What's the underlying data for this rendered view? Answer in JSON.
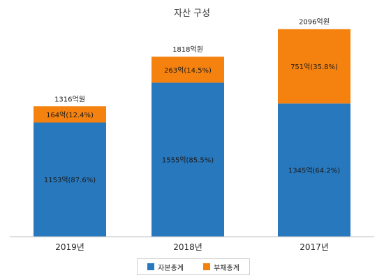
{
  "chart_data": {
    "type": "bar",
    "stacked": true,
    "title": "자산 구성",
    "categories": [
      "2019년",
      "2018년",
      "2017년"
    ],
    "totals": [
      1316,
      1818,
      2096
    ],
    "total_labels": [
      "1316억원",
      "1818억원",
      "2096억원"
    ],
    "series": [
      {
        "name": "자본총계",
        "color": "#2878bd",
        "values": [
          1153,
          1555,
          1345
        ],
        "labels": [
          "1153억(87.6%)",
          "1555억(85.5%)",
          "1345억(64.2%)"
        ]
      },
      {
        "name": "부채총계",
        "color": "#f5820f",
        "values": [
          164,
          263,
          751
        ],
        "labels": [
          "164억(12.4%)",
          "263억(14.5%)",
          "751억(35.8%)"
        ]
      }
    ],
    "ylim": [
      0,
      2200
    ],
    "grid": false,
    "legend_position": "bottom"
  }
}
